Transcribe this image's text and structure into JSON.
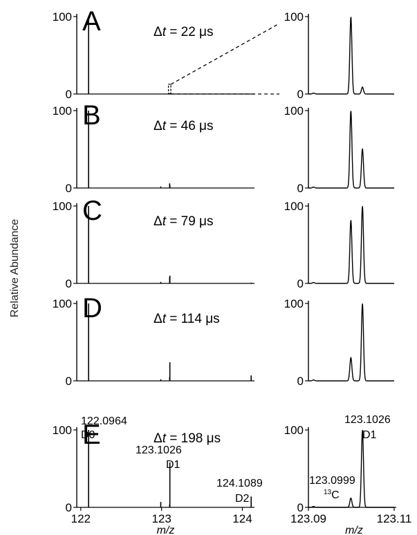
{
  "ylabel": "Relative Abundance",
  "xlabel": "m/z",
  "colors": {
    "trace": "#000000",
    "background": "#ffffff"
  },
  "chart_data": [
    {
      "type": "line",
      "panel": "A",
      "delta_t": "22 μs",
      "full": {
        "xlim": [
          121.95,
          124.15
        ],
        "ylim": [
          0,
          100
        ],
        "peaks": [
          {
            "x": 122.0964,
            "y": 100
          },
          {
            "x": 123.0999,
            "y": 1
          },
          {
            "x": 123.1026,
            "y": 1
          }
        ]
      },
      "zoom": {
        "xlim": [
          123.09,
          123.11
        ],
        "ylim": [
          0,
          100
        ],
        "peaks": [
          {
            "x": 123.0999,
            "y": 100
          },
          {
            "x": 123.1026,
            "y": 9
          }
        ]
      },
      "zoom_box": "dashed"
    },
    {
      "type": "line",
      "panel": "B",
      "delta_t": "46 μs",
      "full": {
        "xlim": [
          121.95,
          124.15
        ],
        "ylim": [
          0,
          100
        ],
        "peaks": [
          {
            "x": 122.0964,
            "y": 100
          },
          {
            "x": 122.99,
            "y": 2
          },
          {
            "x": 123.0999,
            "y": 6
          },
          {
            "x": 123.1026,
            "y": 4
          }
        ]
      },
      "zoom": {
        "xlim": [
          123.09,
          123.11
        ],
        "ylim": [
          0,
          100
        ],
        "peaks": [
          {
            "x": 123.0999,
            "y": 100
          },
          {
            "x": 123.1026,
            "y": 51
          }
        ]
      }
    },
    {
      "type": "line",
      "panel": "C",
      "delta_t": "79 μs",
      "full": {
        "xlim": [
          121.95,
          124.15
        ],
        "ylim": [
          0,
          100
        ],
        "peaks": [
          {
            "x": 122.0964,
            "y": 100
          },
          {
            "x": 122.99,
            "y": 2
          },
          {
            "x": 123.0999,
            "y": 8
          },
          {
            "x": 123.1026,
            "y": 10
          },
          {
            "x": 124.1089,
            "y": 1
          }
        ]
      },
      "zoom": {
        "xlim": [
          123.09,
          123.11
        ],
        "ylim": [
          0,
          100
        ],
        "peaks": [
          {
            "x": 123.0999,
            "y": 82
          },
          {
            "x": 123.1026,
            "y": 100
          }
        ]
      }
    },
    {
      "type": "line",
      "panel": "D",
      "delta_t": "114 μs",
      "full": {
        "xlim": [
          121.95,
          124.15
        ],
        "ylim": [
          0,
          100
        ],
        "peaks": [
          {
            "x": 122.0964,
            "y": 100
          },
          {
            "x": 122.99,
            "y": 2
          },
          {
            "x": 123.0999,
            "y": 5
          },
          {
            "x": 123.1026,
            "y": 24
          },
          {
            "x": 124.1089,
            "y": 7
          }
        ]
      },
      "zoom": {
        "xlim": [
          123.09,
          123.11
        ],
        "ylim": [
          0,
          100
        ],
        "peaks": [
          {
            "x": 123.0999,
            "y": 30
          },
          {
            "x": 123.1026,
            "y": 100
          }
        ]
      }
    },
    {
      "type": "line",
      "panel": "E",
      "delta_t": "198 μs",
      "full": {
        "xlim": [
          121.95,
          124.15
        ],
        "ylim": [
          0,
          100
        ],
        "peaks": [
          {
            "x": 122.0964,
            "y": 100
          },
          {
            "x": 122.99,
            "y": 7
          },
          {
            "x": 123.0999,
            "y": 4
          },
          {
            "x": 123.1026,
            "y": 58
          },
          {
            "x": 124.1089,
            "y": 14
          }
        ],
        "xticks": [
          "122",
          "123",
          "124"
        ],
        "annotations": [
          {
            "mass": "122.0964",
            "label": "D0"
          },
          {
            "mass": "123.1026",
            "label": "D1"
          },
          {
            "mass": "124.1089",
            "label": "D2"
          }
        ]
      },
      "zoom": {
        "xlim": [
          123.09,
          123.11
        ],
        "ylim": [
          0,
          100
        ],
        "peaks": [
          {
            "x": 123.0999,
            "y": 12
          },
          {
            "x": 123.1026,
            "y": 100
          }
        ],
        "xticks": [
          "123.09",
          "123.11"
        ],
        "annotations": [
          {
            "mass": "123.1026",
            "label": "D1"
          },
          {
            "mass": "123.0999",
            "label": "13C"
          }
        ]
      }
    }
  ]
}
